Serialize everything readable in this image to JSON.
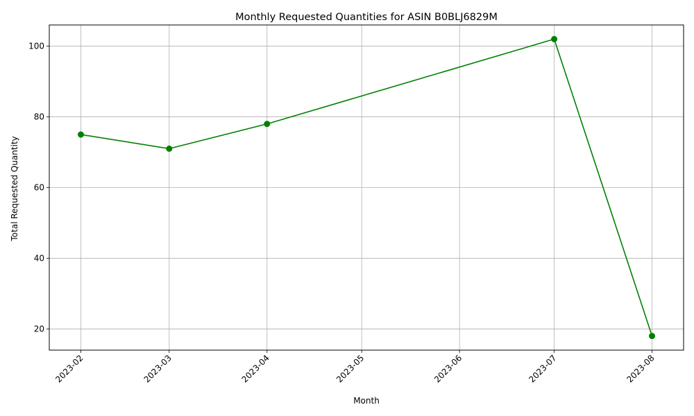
{
  "chart_data": {
    "type": "line",
    "title": "Monthly Requested Quantities for ASIN B0BLJ6829M",
    "xlabel": "Month",
    "ylabel": "Total Requested Quantity",
    "x_ticks": [
      "2023-02",
      "2023-03",
      "2023-04",
      "2023-05",
      "2023-06",
      "2023-07",
      "2023-08"
    ],
    "x_tick_dates": [
      "2023-02-01",
      "2023-03-01",
      "2023-04-01",
      "2023-05-01",
      "2023-06-01",
      "2023-07-01",
      "2023-08-01"
    ],
    "x_range": [
      "2023-01-22",
      "2023-08-11"
    ],
    "y_ticks": [
      20,
      40,
      60,
      80,
      100
    ],
    "ylim": [
      14,
      106
    ],
    "grid": true,
    "legend": "none",
    "series": [
      {
        "color": "#008000",
        "marker": "circle",
        "points": [
          {
            "x": "2023-02-01",
            "y": 75
          },
          {
            "x": "2023-03-01",
            "y": 71
          },
          {
            "x": "2023-04-01",
            "y": 78
          },
          {
            "x": "2023-07-01",
            "y": 102
          },
          {
            "x": "2023-08-01",
            "y": 18
          }
        ]
      }
    ]
  }
}
